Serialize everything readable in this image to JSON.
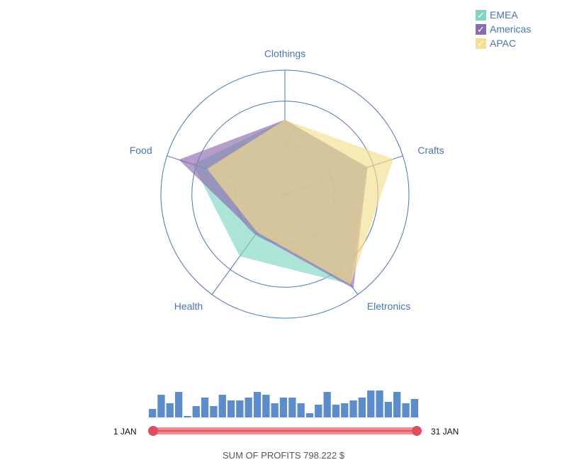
{
  "chart_data": [
    {
      "type": "radar",
      "axes": [
        "Clothings",
        "Crafts",
        "Eletronics",
        "Health",
        "Food"
      ],
      "rmax": 100,
      "rings": [
        40,
        75,
        100
      ],
      "series": [
        {
          "name": "EMEA",
          "color": "#7fd6c2",
          "values": [
            60,
            70,
            90,
            62,
            78
          ]
        },
        {
          "name": "Americas",
          "color": "#8e6aae",
          "values": [
            60,
            70,
            94,
            40,
            90
          ]
        },
        {
          "name": "APAC",
          "color": "#f4df8c",
          "values": [
            60,
            92,
            90,
            38,
            66
          ]
        }
      ],
      "legend": {
        "position": "top-right"
      }
    },
    {
      "type": "bar",
      "categories": [
        "1",
        "2",
        "3",
        "4",
        "5",
        "6",
        "7",
        "8",
        "9",
        "10",
        "11",
        "12",
        "13",
        "14",
        "15",
        "16",
        "17",
        "18",
        "19",
        "20",
        "21",
        "22",
        "23",
        "24",
        "25",
        "26",
        "27",
        "28",
        "29",
        "30",
        "31"
      ],
      "values": [
        3,
        8,
        5,
        9,
        0.5,
        4,
        7,
        4,
        8,
        6,
        6,
        7,
        9,
        8,
        5,
        7,
        7,
        5,
        1.5,
        4.5,
        9,
        4.5,
        5,
        6,
        7,
        9.5,
        9.5,
        5.5,
        9,
        5,
        6.5
      ],
      "color": "#5b8ccc"
    }
  ],
  "timeline": {
    "start_label": "1 JAN",
    "end_label": "31 JAN",
    "accent": "#e04e5c"
  },
  "summary": "SUM OF PROFITS 798.222 $"
}
